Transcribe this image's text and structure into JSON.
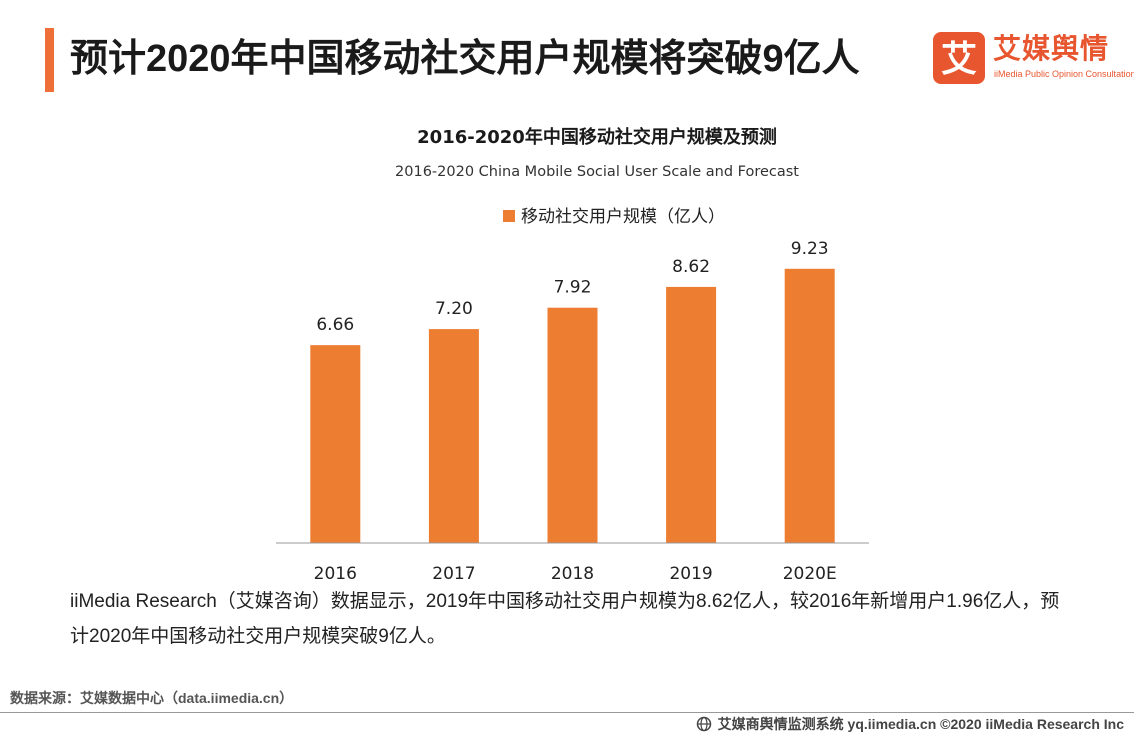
{
  "header": {
    "title": "预计2020年中国移动社交用户规模将突破9亿人"
  },
  "logo": {
    "mark_char": "艾",
    "name_cn": "艾媒舆情",
    "name_en": "iiMedia Public Opinion Consultation"
  },
  "chart_data": {
    "type": "bar",
    "title": "2016-2020年中国移动社交用户规模及预测",
    "subtitle": "2016-2020 China Mobile Social User Scale and Forecast",
    "categories": [
      "2016",
      "2017",
      "2018",
      "2019",
      "2020E"
    ],
    "series": [
      {
        "name": "移动社交用户规模（亿人）",
        "values": [
          6.66,
          7.2,
          7.92,
          8.62,
          9.23
        ],
        "labels": [
          "6.66",
          "7.20",
          "7.92",
          "8.62",
          "9.23"
        ],
        "color": "#ed7d31"
      }
    ],
    "xlabel": "",
    "ylabel": "",
    "ylim": [
      0,
      10.3
    ],
    "grid": false,
    "legend": "top-center"
  },
  "description": "iiMedia Research（艾媒咨询）数据显示，2019年中国移动社交用户规模为8.62亿人，较2016年新增用户1.96亿人，预计2020年中国移动社交用户规模突破9亿人。",
  "source": "数据来源：艾媒数据中心（data.iimedia.cn）",
  "footer": {
    "text": "艾媒商舆情监测系统 yq.iimedia.cn ©2020 iiMedia Research Inc"
  }
}
